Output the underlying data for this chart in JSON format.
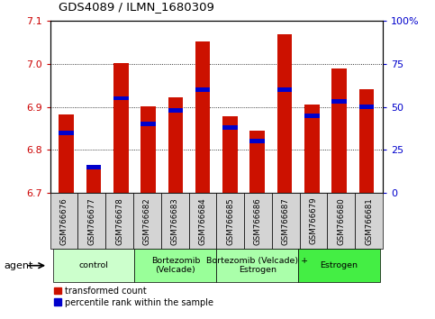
{
  "title": "GDS4089 / ILMN_1680309",
  "samples": [
    "GSM766676",
    "GSM766677",
    "GSM766678",
    "GSM766682",
    "GSM766683",
    "GSM766684",
    "GSM766685",
    "GSM766686",
    "GSM766687",
    "GSM766679",
    "GSM766680",
    "GSM766681"
  ],
  "red_values": [
    6.882,
    6.754,
    7.002,
    6.902,
    6.922,
    7.052,
    6.878,
    6.845,
    7.068,
    6.905,
    6.99,
    6.942
  ],
  "blue_percentiles": [
    35,
    15,
    55,
    40,
    48,
    60,
    38,
    30,
    60,
    45,
    53,
    50
  ],
  "ylim_left": [
    6.7,
    7.1
  ],
  "ylim_right": [
    0,
    100
  ],
  "yticks_left": [
    6.7,
    6.8,
    6.9,
    7.0,
    7.1
  ],
  "yticks_right": [
    0,
    25,
    50,
    75,
    100
  ],
  "ytick_labels_right": [
    "0",
    "25",
    "50",
    "75",
    "100%"
  ],
  "group_labels": [
    "control",
    "Bortezomib\n(Velcade)",
    "Bortezomib (Velcade) +\nEstrogen",
    "Estrogen"
  ],
  "group_colors": [
    "#ccffcc",
    "#99ff99",
    "#aaffaa",
    "#44ee44"
  ],
  "group_starts": [
    0,
    3,
    6,
    9
  ],
  "group_ends": [
    3,
    6,
    9,
    12
  ],
  "legend_labels": [
    "transformed count",
    "percentile rank within the sample"
  ],
  "bar_width": 0.55,
  "bar_color_red": "#cc1100",
  "bar_color_blue": "#0000cc",
  "agent_label": "agent"
}
